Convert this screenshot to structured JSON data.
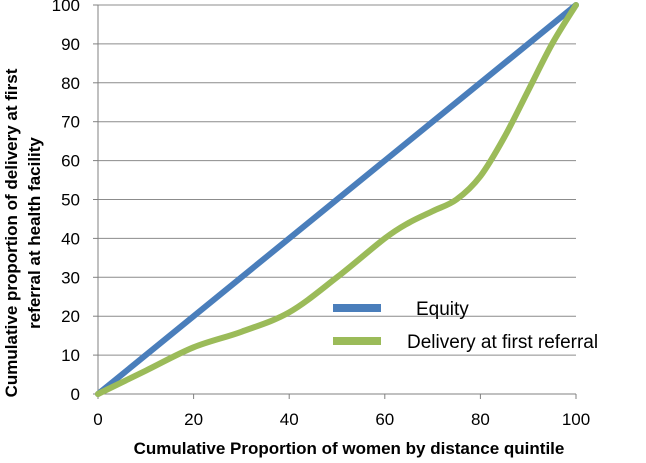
{
  "chart_data": {
    "type": "line",
    "title": "",
    "xlabel": "Cumulative Proportion of women by distance quintile",
    "ylabel_lines": [
      "Cumulative proportion of delivery at first",
      "referral at  health facility"
    ],
    "xlim": [
      0,
      100
    ],
    "ylim": [
      0,
      100
    ],
    "x_ticks": [
      0,
      20,
      40,
      60,
      80,
      100
    ],
    "y_ticks": [
      0,
      10,
      20,
      30,
      40,
      50,
      60,
      70,
      80,
      90,
      100
    ],
    "grid": "horizontal",
    "legend_position": "bottom-right, inside plot",
    "series": [
      {
        "name": "Equity",
        "color": "#4A7EBB",
        "x": [
          0,
          100
        ],
        "y": [
          0,
          100
        ]
      },
      {
        "name": "Delivery at first referral",
        "color": "#9BBB59",
        "x": [
          0,
          10,
          20,
          30,
          40,
          50,
          60,
          65,
          70,
          75,
          80,
          85,
          90,
          95,
          100
        ],
        "y": [
          0,
          6,
          12,
          16,
          21,
          30,
          40,
          44,
          47,
          50,
          56,
          66,
          78,
          90,
          100
        ]
      }
    ]
  }
}
